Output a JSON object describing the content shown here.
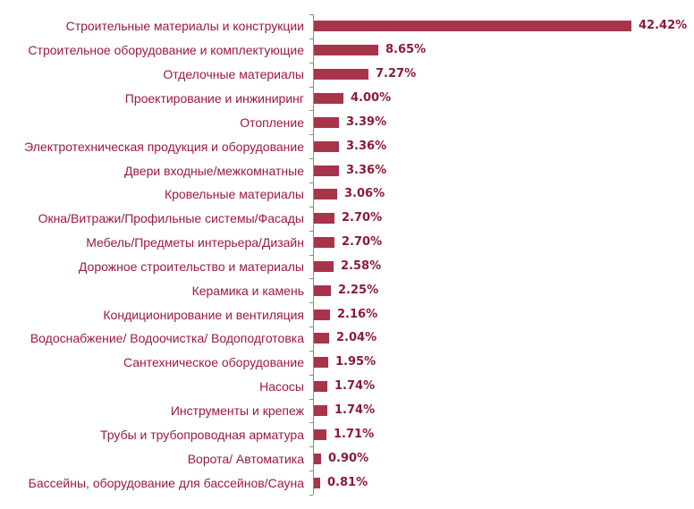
{
  "chart_data": {
    "type": "bar",
    "orientation": "horizontal",
    "title": "",
    "xlabel": "",
    "ylabel": "",
    "grid": false,
    "legend": null,
    "bar_color": "#a8344a",
    "label_color": "#9b1b3a",
    "value_label_color": "#8b1a35",
    "xlim": [
      0,
      45
    ],
    "categories": [
      "Строительные материалы и конструкции",
      "Строительное оборудование и комплектующие",
      "Отделочные материалы",
      "Проектирование и инжиниринг",
      "Отопление",
      "Электротехническая продукция и оборудование",
      "Двери входные/межкомнатные",
      "Кровельные материалы",
      "Окна/Витражи/Профильные системы/Фасады",
      "Мебель/Предметы интерьера/Дизайн",
      "Дорожное строительство и материалы",
      "Керамика и камень",
      "Кондиционирование и вентиляция",
      "Водоснабжение/ Водоочистка/ Водоподготовка",
      "Сантехническое оборудование",
      "Насосы",
      "Инструменты и крепеж",
      "Трубы и трубопроводная арматура",
      "Ворота/ Автоматика",
      "Бассейны, оборудование для бассейнов/Сауна"
    ],
    "values": [
      42.42,
      8.65,
      7.27,
      4.0,
      3.39,
      3.36,
      3.36,
      3.06,
      2.7,
      2.7,
      2.58,
      2.25,
      2.16,
      2.04,
      1.95,
      1.74,
      1.74,
      1.71,
      0.9,
      0.81
    ],
    "value_labels": [
      "42.42%",
      "8.65%",
      "7.27%",
      "4.00%",
      "3.39%",
      "3.36%",
      "3.36%",
      "3.06%",
      "2.70%",
      "2.70%",
      "2.58%",
      "2.25%",
      "2.16%",
      "2.04%",
      "1.95%",
      "1.74%",
      "1.74%",
      "1.71%",
      "0.90%",
      "0.81%"
    ]
  }
}
